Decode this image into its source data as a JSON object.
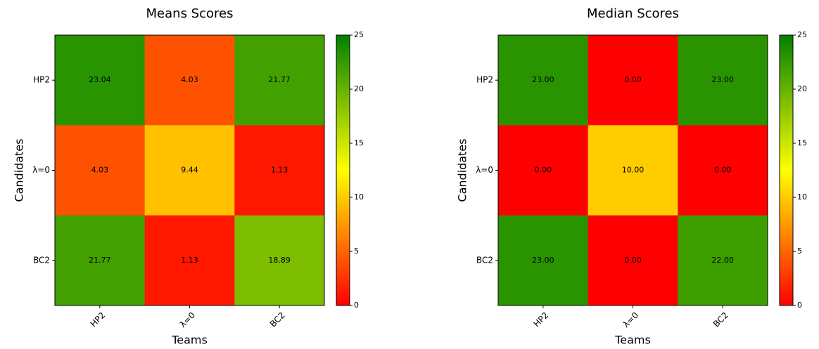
{
  "chart_data": [
    {
      "type": "heatmap",
      "title": "Means Scores",
      "x_label": "Teams",
      "y_label": "Candidates",
      "x_categories": [
        "HP2",
        "λ=0",
        "BC2"
      ],
      "y_categories": [
        "HP2",
        "λ=0",
        "BC2"
      ],
      "values": [
        [
          23.04,
          4.03,
          21.77
        ],
        [
          4.03,
          9.44,
          1.13
        ],
        [
          21.77,
          1.13,
          18.89
        ]
      ],
      "colormap": [
        "#ff0000",
        "#ffff00",
        "#008000"
      ],
      "clim": [
        0,
        25
      ],
      "cticks": [
        0,
        5,
        10,
        15,
        20,
        25
      ]
    },
    {
      "type": "heatmap",
      "title": "Median Scores",
      "x_label": "Teams",
      "y_label": "Candidates",
      "x_categories": [
        "HP2",
        "λ=0",
        "BC2"
      ],
      "y_categories": [
        "HP2",
        "λ=0",
        "BC2"
      ],
      "values": [
        [
          23,
          0,
          23
        ],
        [
          0,
          10,
          0
        ],
        [
          23,
          0,
          22
        ]
      ],
      "value_labels": [
        [
          "23.00",
          "0.00",
          "23.00"
        ],
        [
          "0.00",
          "10.00",
          "0.00"
        ],
        [
          "23.00",
          "0.00",
          "22.00"
        ]
      ],
      "colormap": [
        "#ff0000",
        "#ffff00",
        "#008000"
      ],
      "clim": [
        0,
        25
      ],
      "cticks": [
        0,
        5,
        10,
        15,
        20,
        25
      ]
    }
  ]
}
